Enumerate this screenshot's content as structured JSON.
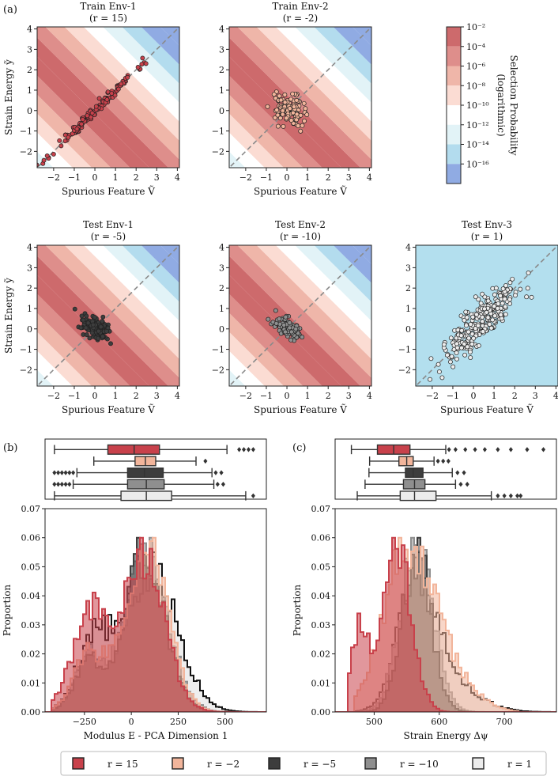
{
  "panel_labels": {
    "a": "(a)",
    "b": "(b)",
    "c": "(c)"
  },
  "colors": {
    "r15": "#c8414b",
    "rm2": "#f2b59b",
    "rm5": "#3d3d3d",
    "rm10": "#8f8f8f",
    "r1": "#ececec",
    "diag": "#8a8a8a",
    "test3_bg": "#b3dfee"
  },
  "colorbar": {
    "title_line1": "Selection Probability",
    "title_line2": "(logarithmic)",
    "ticks": [
      "10⁻²",
      "10⁻⁴",
      "10⁻⁶",
      "10⁻⁸",
      "10⁻¹⁰",
      "10⁻¹²",
      "10⁻¹⁴",
      "10⁻¹⁶"
    ],
    "bands": [
      "#cd6a6c",
      "#de8e8b",
      "#efb6a9",
      "#fbdcd3",
      "#ffffff",
      "#e2f3f7",
      "#b3dcee",
      "#90abe3"
    ]
  },
  "chart_data": [
    {
      "type": "scatter",
      "id": "train_env_1",
      "title": "Train Env-1",
      "subtitle": "(r = 15)",
      "r": 15,
      "xlabel": "Spurious Feature Ṽ",
      "ylabel": "Strain Energy ỹ",
      "xlim": [
        -2.8,
        4.1
      ],
      "ylim": [
        -2.8,
        4.1
      ],
      "xticks": [
        -2,
        -1,
        0,
        1,
        2,
        3,
        4
      ],
      "yticks": [
        -2,
        -1,
        0,
        1,
        2,
        3,
        4
      ],
      "reference_line": "y = x",
      "point_color": "r15",
      "cloud": {
        "n": 140,
        "cx": 0.0,
        "cy": 0.0,
        "sx": 1.0,
        "sy": 1.0,
        "corr": 0.99,
        "seed": 11
      }
    },
    {
      "type": "scatter",
      "id": "train_env_2",
      "title": "Train Env-2",
      "subtitle": "(r = -2)",
      "r": -2,
      "xlabel": "Spurious Feature Ṽ",
      "ylabel": "",
      "xlim": [
        -2.8,
        4.1
      ],
      "ylim": [
        -2.8,
        4.1
      ],
      "xticks": [
        -2,
        -1,
        0,
        1,
        2,
        3,
        4
      ],
      "yticks": [
        -2,
        -1,
        0,
        1,
        2,
        3,
        4
      ],
      "reference_line": "y = x",
      "point_color": "rm2",
      "cloud": {
        "n": 110,
        "cx": 0.1,
        "cy": 0.05,
        "sx": 0.35,
        "sy": 0.35,
        "corr": -0.25,
        "seed": 22
      }
    },
    {
      "type": "scatter",
      "id": "test_env_1",
      "title": "Test Env-1",
      "subtitle": "(r = -5)",
      "r": -5,
      "xlabel": "Spurious Feature Ṽ",
      "ylabel": "Strain Energy ỹ",
      "xlim": [
        -2.8,
        4.1
      ],
      "ylim": [
        -2.8,
        4.1
      ],
      "xticks": [
        -2,
        -1,
        0,
        1,
        2,
        3,
        4
      ],
      "yticks": [
        -2,
        -1,
        0,
        1,
        2,
        3,
        4
      ],
      "reference_line": "y = x",
      "point_color": "rm5",
      "cloud": {
        "n": 120,
        "cx": 0.0,
        "cy": 0.05,
        "sx": 0.33,
        "sy": 0.3,
        "corr": -0.45,
        "seed": 33
      }
    },
    {
      "type": "scatter",
      "id": "test_env_2",
      "title": "Test Env-2",
      "subtitle": "(r = -10)",
      "r": -10,
      "xlabel": "Spurious Feature Ṽ",
      "ylabel": "",
      "xlim": [
        -2.8,
        4.1
      ],
      "ylim": [
        -2.8,
        4.1
      ],
      "xticks": [
        -2,
        -1,
        0,
        1,
        2,
        3,
        4
      ],
      "yticks": [
        -2,
        -1,
        0,
        1,
        2,
        3,
        4
      ],
      "reference_line": "y = x",
      "point_color": "rm10",
      "cloud": {
        "n": 120,
        "cx": 0.05,
        "cy": 0.05,
        "sx": 0.32,
        "sy": 0.28,
        "corr": -0.5,
        "seed": 44
      }
    },
    {
      "type": "scatter",
      "id": "test_env_3",
      "title": "Test Env-3",
      "subtitle": "(r = 1)",
      "r": 1,
      "xlabel": "Spurious Feature Ṽ",
      "ylabel": "",
      "xlim": [
        -2.8,
        4.1
      ],
      "ylim": [
        -2.8,
        4.1
      ],
      "xticks": [
        -2,
        -1,
        0,
        1,
        2,
        3,
        4
      ],
      "yticks": [
        -2,
        -1,
        0,
        1,
        2,
        3,
        4
      ],
      "reference_line": "y = x",
      "point_color": "r1",
      "cloud": {
        "n": 260,
        "cx": 0.3,
        "cy": 0.3,
        "sx": 0.95,
        "sy": 0.95,
        "corr": 0.85,
        "seed": 55
      }
    },
    {
      "type": "histogram",
      "id": "modulus_hist",
      "xlabel": "Modulus E - PCA Dimension 1",
      "ylabel": "Proportion",
      "xlim": [
        -460,
        720
      ],
      "ylim": [
        0,
        0.07
      ],
      "xticks": [
        -250,
        0,
        250,
        500
      ],
      "yticks": [
        0.0,
        0.01,
        0.02,
        0.03,
        0.04,
        0.05,
        0.06,
        0.07
      ],
      "series": [
        {
          "name": "r = 1",
          "color": "r1",
          "bins": [
            -420,
            700
          ],
          "components": [
            {
              "w": 0.25,
              "mu": -200,
              "sd": 90
            },
            {
              "w": 0.75,
              "mu": 110,
              "sd": 140
            }
          ],
          "seed": 5
        },
        {
          "name": "r = −10",
          "color": "rm10",
          "bins": [
            -420,
            620
          ],
          "components": [
            {
              "w": 0.18,
              "mu": -230,
              "sd": 75
            },
            {
              "w": 0.82,
              "mu": 80,
              "sd": 115
            }
          ],
          "seed": 4
        },
        {
          "name": "r = −5",
          "color": "rm5",
          "bins": [
            -420,
            620
          ],
          "components": [
            {
              "w": 0.18,
              "mu": -230,
              "sd": 75
            },
            {
              "w": 0.82,
              "mu": 75,
              "sd": 108
            }
          ],
          "seed": 3
        },
        {
          "name": "r = −2",
          "color": "rm2",
          "bins": [
            -420,
            620
          ],
          "components": [
            {
              "w": 0.2,
              "mu": -230,
              "sd": 80
            },
            {
              "w": 0.8,
              "mu": 80,
              "sd": 112
            }
          ],
          "seed": 2
        },
        {
          "name": "r = 15",
          "color": "r15",
          "bins": [
            -420,
            640
          ],
          "components": [
            {
              "w": 0.34,
              "mu": -225,
              "sd": 95
            },
            {
              "w": 0.66,
              "mu": 60,
              "sd": 115
            }
          ],
          "seed": 1
        }
      ],
      "boxplots": [
        {
          "name": "r = 15",
          "color": "r15",
          "whisker_lo": -410,
          "q1": -125,
          "median": 15,
          "q3": 150,
          "whisker_hi": 510,
          "fliers": [
            575,
            600,
            625,
            650
          ]
        },
        {
          "name": "r = −2",
          "color": "rm2",
          "whisker_lo": -200,
          "q1": 20,
          "median": 75,
          "q3": 130,
          "whisker_hi": 345,
          "fliers": [
            395
          ]
        },
        {
          "name": "r = −5",
          "color": "rm5",
          "whisker_lo": -290,
          "q1": -20,
          "median": 70,
          "q3": 170,
          "whisker_hi": 430,
          "fliers": [
            -410,
            -390,
            -370,
            -350,
            -330,
            -310,
            450,
            480
          ]
        },
        {
          "name": "r = −10",
          "color": "rm10",
          "whisker_lo": -310,
          "q1": -20,
          "median": 80,
          "q3": 175,
          "whisker_hi": 440,
          "fliers": [
            -410,
            -390,
            -370,
            -350,
            -330,
            460,
            490
          ]
        },
        {
          "name": "r = 1",
          "color": "r1",
          "whisker_lo": -410,
          "q1": -55,
          "median": 80,
          "q3": 215,
          "whisker_hi": 610,
          "fliers": [
            650
          ]
        }
      ]
    },
    {
      "type": "histogram",
      "id": "strain_hist",
      "xlabel": "Strain Energy Δψ",
      "ylabel": "Proportion",
      "xlim": [
        440,
        780
      ],
      "ylim": [
        0,
        0.07
      ],
      "xticks": [
        500,
        600,
        700
      ],
      "yticks": [
        0.0,
        0.01,
        0.02,
        0.03,
        0.04,
        0.05,
        0.06,
        0.07
      ],
      "series": [
        {
          "name": "r = 1",
          "color": "r1",
          "bins": [
            470,
            770
          ],
          "components": [
            {
              "w": 0.7,
              "mu": 565,
              "sd": 28
            },
            {
              "w": 0.3,
              "mu": 610,
              "sd": 45
            }
          ],
          "seed": 15
        },
        {
          "name": "r = −10",
          "color": "rm10",
          "bins": [
            470,
            720
          ],
          "components": [
            {
              "w": 1.0,
              "mu": 565,
              "sd": 25
            }
          ],
          "seed": 14
        },
        {
          "name": "r = −5",
          "color": "rm5",
          "bins": [
            470,
            720
          ],
          "components": [
            {
              "w": 1.0,
              "mu": 565,
              "sd": 22
            }
          ],
          "seed": 13
        },
        {
          "name": "r = −2",
          "color": "rm2",
          "bins": [
            470,
            720
          ],
          "components": [
            {
              "w": 0.6,
              "mu": 545,
              "sd": 35
            },
            {
              "w": 0.4,
              "mu": 590,
              "sd": 45
            }
          ],
          "seed": 12
        },
        {
          "name": "r = 15",
          "color": "r15",
          "bins": [
            460,
            660
          ],
          "components": [
            {
              "w": 0.22,
              "mu": 478,
              "sd": 12
            },
            {
              "w": 0.78,
              "mu": 535,
              "sd": 22
            }
          ],
          "seed": 11
        }
      ],
      "boxplots": [
        {
          "name": "r = 15",
          "color": "r15",
          "whisker_lo": 465,
          "q1": 505,
          "median": 530,
          "q3": 555,
          "whisker_hi": 610,
          "fliers": [
            615,
            625,
            640,
            655,
            670,
            690,
            710,
            735,
            760
          ]
        },
        {
          "name": "r = −2",
          "color": "rm2",
          "whisker_lo": 493,
          "q1": 538,
          "median": 550,
          "q3": 560,
          "whisker_hi": 592,
          "fliers": [
            598,
            606,
            614
          ]
        },
        {
          "name": "r = −5",
          "color": "rm5",
          "whisker_lo": 492,
          "q1": 548,
          "median": 560,
          "q3": 575,
          "whisker_hi": 620,
          "fliers": [
            628,
            638
          ]
        },
        {
          "name": "r = −10",
          "color": "rm10",
          "whisker_lo": 486,
          "q1": 545,
          "median": 562,
          "q3": 578,
          "whisker_hi": 625,
          "fliers": [
            633,
            643
          ]
        },
        {
          "name": "r = 1",
          "color": "r1",
          "whisker_lo": 474,
          "q1": 540,
          "median": 562,
          "q3": 595,
          "whisker_hi": 680,
          "fliers": [
            690,
            700,
            710,
            720,
            725
          ]
        }
      ]
    }
  ],
  "legend": [
    {
      "label": "r = 15",
      "color": "r15"
    },
    {
      "label": "r = −2",
      "color": "rm2"
    },
    {
      "label": "r = −5",
      "color": "rm5"
    },
    {
      "label": "r = −10",
      "color": "rm10"
    },
    {
      "label": "r = 1",
      "color": "r1"
    }
  ]
}
